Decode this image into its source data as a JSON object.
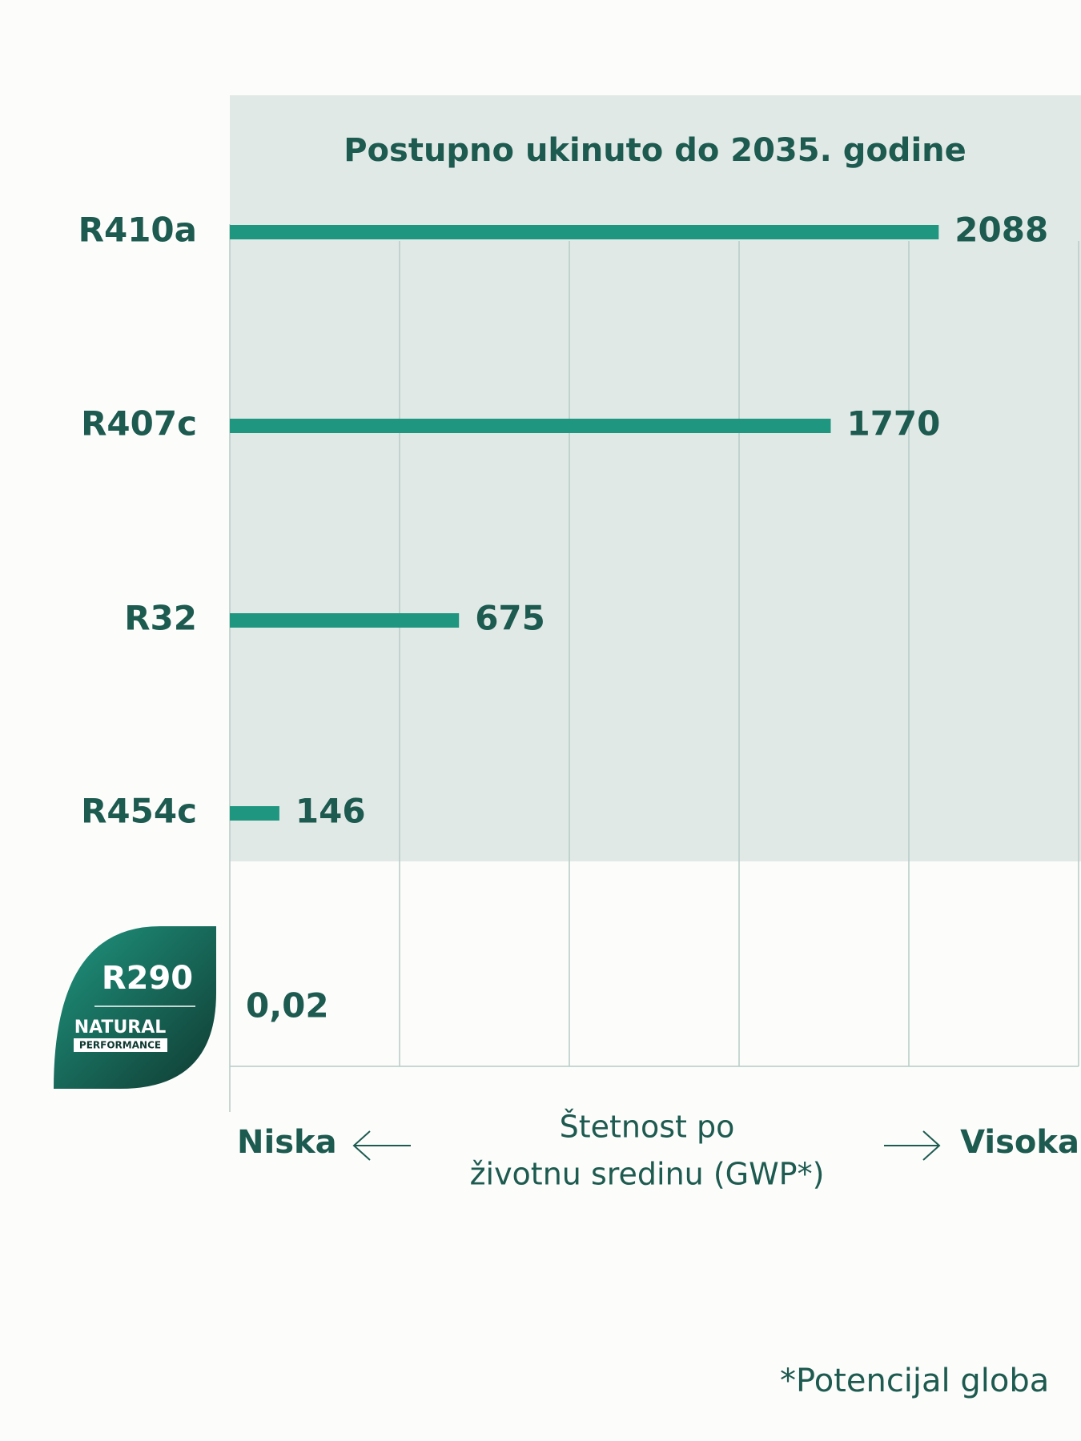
{
  "chart_data": {
    "type": "bar",
    "orientation": "horizontal",
    "title": "Postupno ukinuto do 2035. godine",
    "categories": [
      "R410a",
      "R407c",
      "R32",
      "R454c",
      "R290"
    ],
    "values": [
      2088,
      1770,
      675,
      146,
      0.02
    ],
    "value_labels": [
      "2088",
      "1770",
      "675",
      "146",
      "0,02"
    ],
    "color": "#1f9680",
    "xlim": [
      0,
      2500
    ],
    "xticks": [
      0,
      500,
      1000,
      1500,
      2000,
      2500
    ],
    "grid": true,
    "x_axis_label": [
      "Štetnost po",
      "životnu sredinu (GWP*)"
    ],
    "x_axis_low": "Niska",
    "x_axis_high": "Visoka",
    "badge_labels": [
      "NATURAL",
      "PERFORMANCE"
    ],
    "footnote": "*Potencijal globa"
  }
}
